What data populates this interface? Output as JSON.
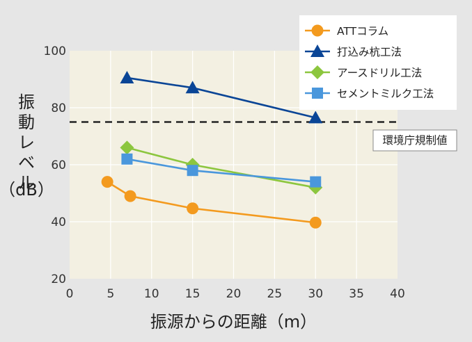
{
  "chart_data": {
    "type": "line",
    "xlabel": "振源からの距離（m）",
    "ylabel_chars": [
      "振",
      "動",
      "レ",
      "ベ",
      "ル"
    ],
    "ylabel_unit": "（dB）",
    "xlim": [
      0,
      40
    ],
    "ylim": [
      20,
      100
    ],
    "x_ticks": [
      "0",
      "5",
      "10",
      "15",
      "20",
      "25",
      "30",
      "35",
      "40"
    ],
    "y_ticks": [
      "20",
      "40",
      "60",
      "80",
      "100"
    ],
    "grid": true,
    "legend_position": "top-right",
    "reference_line": {
      "label": "環境庁規制値",
      "value": 75
    },
    "series": [
      {
        "name": "ATTコラム",
        "color": "#f39a1e",
        "marker": "circle",
        "points": [
          [
            4.6,
            54
          ],
          [
            7.4,
            49
          ],
          [
            15,
            44.7
          ],
          [
            30,
            39.7
          ]
        ]
      },
      {
        "name": "打込み杭工法",
        "color": "#0a4596",
        "marker": "triangle",
        "points": [
          [
            7,
            90.5
          ],
          [
            15,
            87
          ],
          [
            30,
            76.5
          ]
        ]
      },
      {
        "name": "アースドリル工法",
        "color": "#8cc63e",
        "marker": "diamond",
        "points": [
          [
            7,
            66
          ],
          [
            15,
            60
          ],
          [
            30,
            52
          ]
        ]
      },
      {
        "name": "セメントミルク工法",
        "color": "#4a97dc",
        "marker": "square",
        "points": [
          [
            7,
            62
          ],
          [
            15,
            58
          ],
          [
            30,
            54
          ]
        ]
      }
    ]
  }
}
